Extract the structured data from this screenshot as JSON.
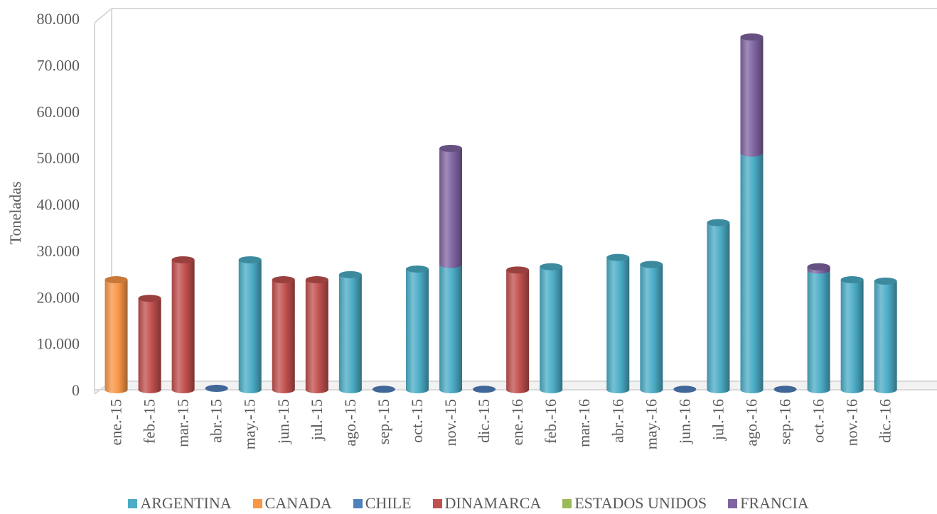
{
  "chart_data": {
    "type": "bar",
    "stacked": true,
    "style": "3d-cylinder",
    "ylabel": "Toneladas",
    "xlabel": "",
    "ylim": [
      0,
      80000
    ],
    "yticks": [
      0,
      10000,
      20000,
      30000,
      40000,
      50000,
      60000,
      70000,
      80000
    ],
    "ytick_labels": [
      "0",
      "10.000",
      "20.000",
      "30.000",
      "40.000",
      "50.000",
      "60.000",
      "70.000",
      "80.000"
    ],
    "grid": false,
    "legend_position": "bottom",
    "categories": [
      "ene.-15",
      "feb.-15",
      "mar.-15",
      "abr.-15",
      "may.-15",
      "jun.-15",
      "jul.-15",
      "ago.-15",
      "sep.-15",
      "oct.-15",
      "nov.-15",
      "dic.-15",
      "ene.-16",
      "feb.-16",
      "mar.-16",
      "abr.-16",
      "may.-16",
      "jun.-16",
      "jul.-16",
      "ago.-16",
      "sep.-16",
      "oct.-16",
      "nov.-16",
      "dic.-16"
    ],
    "series": [
      {
        "name": "ARGENTINA",
        "color": "#4bacc6",
        "values": [
          0,
          0,
          0,
          0,
          28000,
          0,
          0,
          24800,
          0,
          26000,
          27000,
          0,
          0,
          26500,
          0,
          28500,
          27000,
          0,
          36000,
          51000,
          0,
          25800,
          23700,
          23400
        ]
      },
      {
        "name": "CANADA",
        "color": "#f79646",
        "values": [
          23700,
          0,
          0,
          0,
          0,
          0,
          0,
          0,
          0,
          0,
          0,
          0,
          0,
          0,
          0,
          0,
          0,
          0,
          0,
          0,
          0,
          0,
          0,
          0
        ]
      },
      {
        "name": "CHILE",
        "color": "#4f81bd",
        "values": [
          0,
          0,
          0,
          300,
          0,
          0,
          0,
          0,
          100,
          0,
          0,
          100,
          0,
          0,
          0,
          0,
          0,
          100,
          0,
          0,
          100,
          0,
          0,
          0
        ]
      },
      {
        "name": "DINAMARCA",
        "color": "#c0504d",
        "values": [
          0,
          19700,
          28000,
          0,
          0,
          23700,
          23700,
          0,
          0,
          0,
          0,
          0,
          25800,
          0,
          0,
          0,
          0,
          0,
          0,
          0,
          0,
          0,
          0,
          0
        ]
      },
      {
        "name": "ESTADOS UNIDOS",
        "color": "#9bbb59",
        "values": [
          0,
          0,
          0,
          0,
          0,
          0,
          0,
          0,
          0,
          0,
          0,
          0,
          0,
          0,
          0,
          0,
          0,
          0,
          0,
          0,
          0,
          0,
          0,
          0
        ]
      },
      {
        "name": "FRANCIA",
        "color": "#8064a2",
        "values": [
          0,
          0,
          0,
          0,
          0,
          0,
          0,
          0,
          0,
          0,
          25000,
          0,
          0,
          0,
          0,
          0,
          0,
          0,
          0,
          25000,
          0,
          700,
          0,
          0
        ]
      }
    ]
  }
}
